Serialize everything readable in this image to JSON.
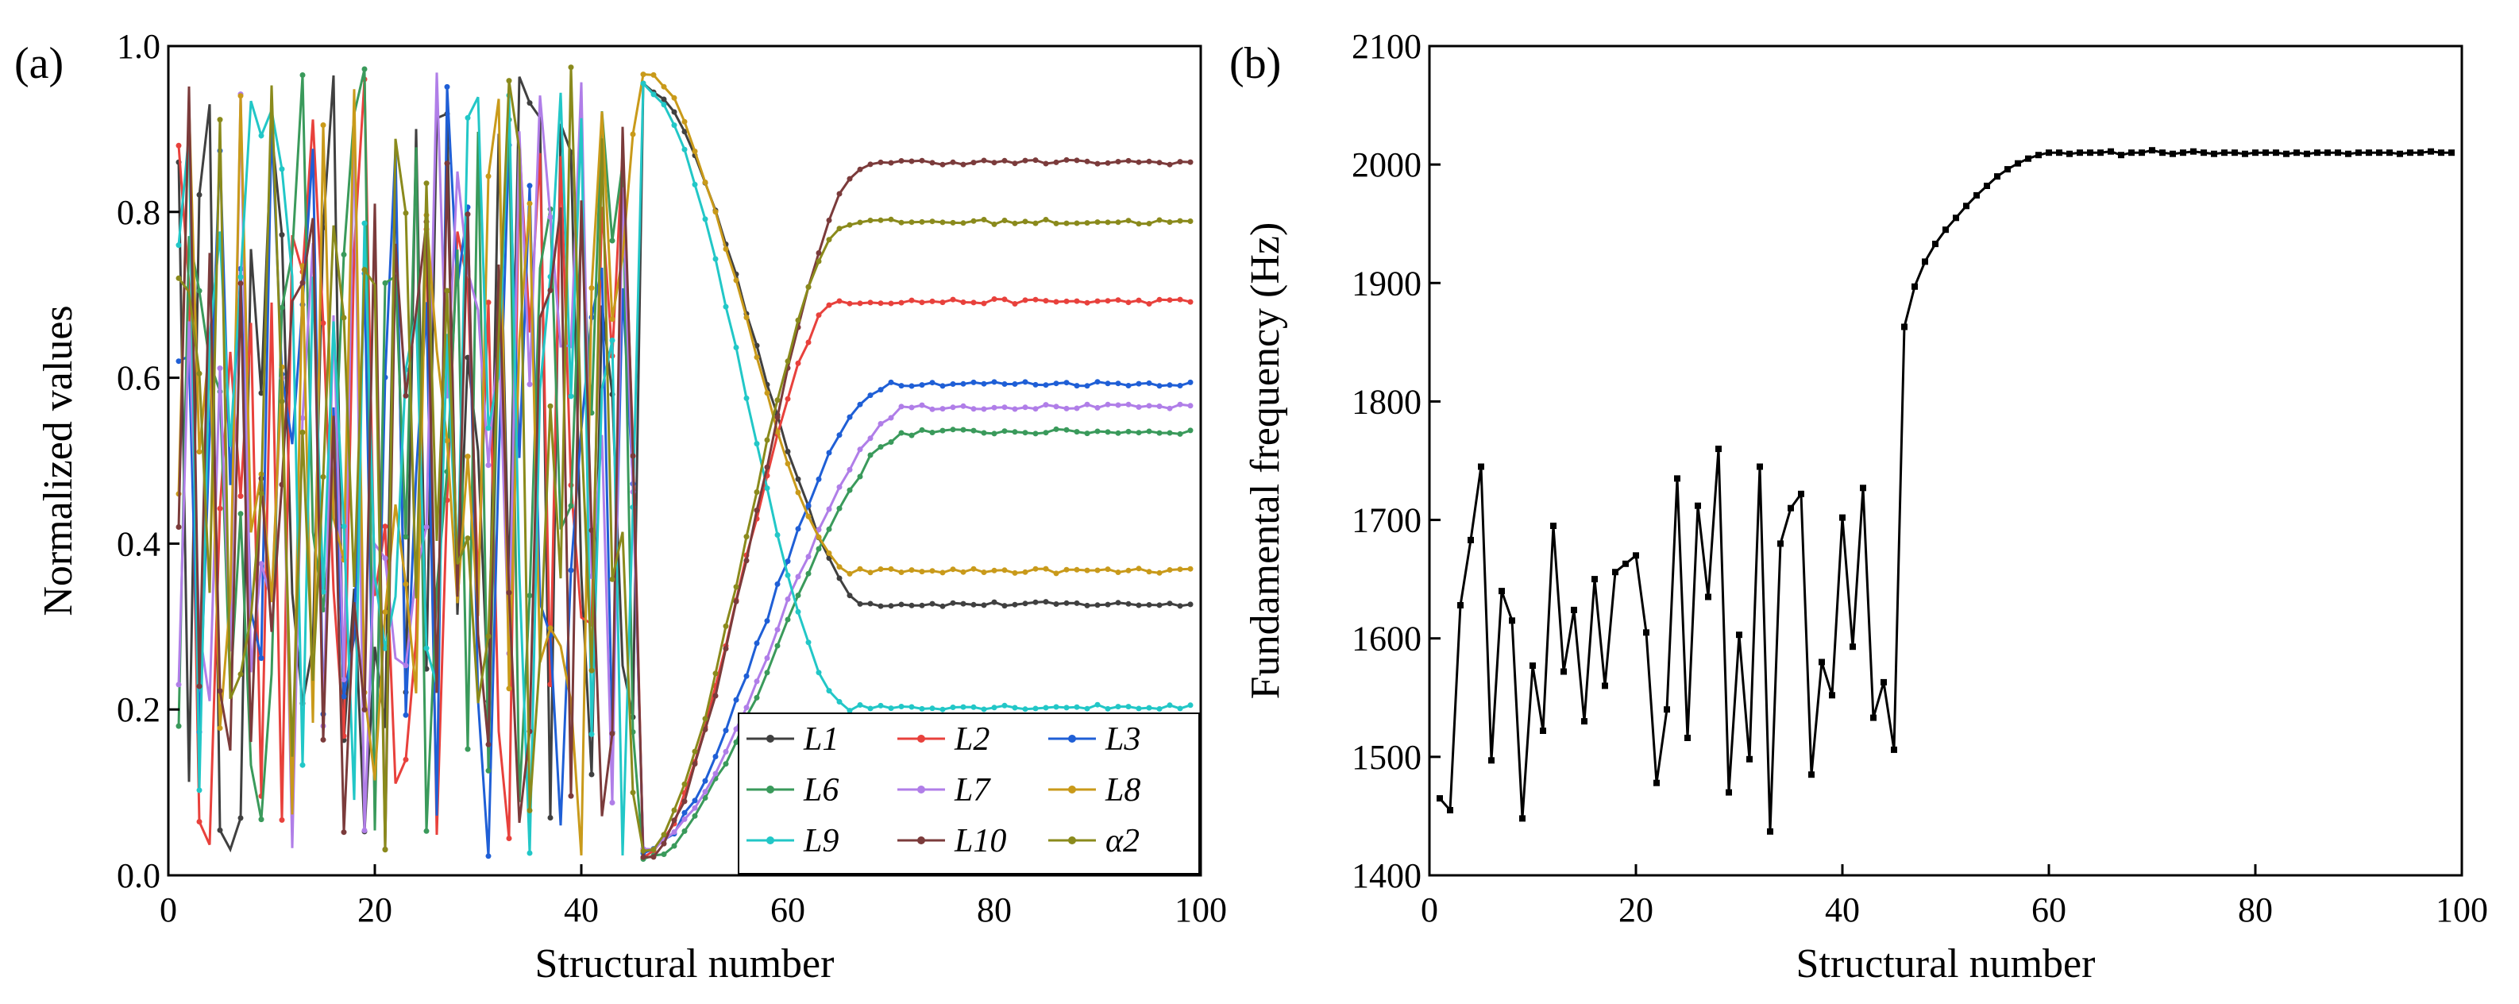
{
  "chart_data": [
    {
      "type": "line",
      "panel_label": "(a)",
      "xlabel": "Structural number",
      "ylabel": "Normalized values",
      "xlim": [
        0,
        100
      ],
      "ylim": [
        0,
        1
      ],
      "xticks": [
        "0",
        "20",
        "40",
        "60",
        "80",
        "100"
      ],
      "yticks": [
        "0.0",
        "0.2",
        "0.4",
        "0.6",
        "0.8",
        "1.0"
      ],
      "legend_position": "bottom-right",
      "grid": false,
      "series": [
        {
          "name": "L1",
          "color": "#404040",
          "start": 0.86,
          "final": 0.327,
          "transition_end": 68
        },
        {
          "name": "L2",
          "color": "#e8413c",
          "start": 0.88,
          "final": 0.692,
          "transition_end": 65
        },
        {
          "name": "L3",
          "color": "#1f5fd6",
          "start": 0.62,
          "final": 0.593,
          "transition_end": 70
        },
        {
          "name": "L6",
          "color": "#3a9a5b",
          "start": 0.18,
          "final": 0.535,
          "transition_end": 72
        },
        {
          "name": "L7",
          "color": "#b07ee8",
          "start": 0.23,
          "final": 0.565,
          "transition_end": 72
        },
        {
          "name": "L8",
          "color": "#c99a1a",
          "start": 0.46,
          "final": 0.367,
          "transition_end": 66
        },
        {
          "name": "L9",
          "color": "#22c7c7",
          "start": 0.76,
          "final": 0.203,
          "transition_end": 66
        },
        {
          "name": "L10",
          "color": "#7b3b3b",
          "start": 0.42,
          "final": 0.86,
          "transition_end": 68
        },
        {
          "name": "α2",
          "color": "#8a8a1c",
          "start": 0.72,
          "final": 0.788,
          "transition_end": 66
        }
      ]
    },
    {
      "type": "line",
      "panel_label": "(b)",
      "xlabel": "Structural number",
      "ylabel": "Fundamental frequency (Hz)",
      "xlim": [
        0,
        100
      ],
      "ylim": [
        1400,
        2100
      ],
      "xticks": [
        "0",
        "20",
        "40",
        "60",
        "80",
        "100"
      ],
      "yticks": [
        "1400",
        "1500",
        "1600",
        "1700",
        "1800",
        "1900",
        "2000",
        "2100"
      ],
      "grid": false,
      "series": [
        {
          "name": "",
          "color": "#000000",
          "x": [
            1,
            2,
            3,
            4,
            5,
            6,
            7,
            8,
            9,
            10,
            11,
            12,
            13,
            14,
            15,
            16,
            17,
            18,
            19,
            20,
            21,
            22,
            23,
            24,
            25,
            26,
            27,
            28,
            29,
            30,
            31,
            32,
            33,
            34,
            35,
            36,
            37,
            38,
            39,
            40,
            41,
            42,
            43,
            44,
            45,
            46,
            47,
            48,
            49,
            50,
            51,
            52,
            53,
            54,
            55,
            56,
            57,
            58,
            59,
            60,
            61,
            62,
            63,
            64,
            65,
            66,
            67,
            68,
            69,
            70,
            71,
            72,
            73,
            74,
            75,
            76,
            77,
            78,
            79,
            80,
            81,
            82,
            83,
            84,
            85,
            86,
            87,
            88,
            89,
            90,
            91,
            92,
            93,
            94,
            95,
            96,
            97,
            98,
            99
          ],
          "y": [
            1465,
            1455,
            1628,
            1683,
            1745,
            1497,
            1640,
            1615,
            1448,
            1577,
            1522,
            1695,
            1572,
            1624,
            1530,
            1650,
            1560,
            1656,
            1663,
            1670,
            1605,
            1478,
            1540,
            1735,
            1516,
            1712,
            1635,
            1760,
            1470,
            1603,
            1498,
            1745,
            1437,
            1680,
            1710,
            1722,
            1485,
            1580,
            1552,
            1702,
            1593,
            1727,
            1533,
            1563,
            1506,
            1863,
            1897,
            1918,
            1933,
            1945,
            1955,
            1965,
            1974,
            1982,
            1990,
            1996,
            2001,
            2005,
            2008,
            2010,
            2010,
            2009,
            2010,
            2010,
            2010,
            2011,
            2008,
            2010,
            2010,
            2012,
            2010,
            2009,
            2010,
            2011,
            2010,
            2009,
            2010,
            2010,
            2009,
            2010,
            2010,
            2010,
            2009,
            2010,
            2009,
            2010,
            2010,
            2010,
            2009,
            2010,
            2010,
            2010,
            2010,
            2009,
            2010,
            2010,
            2011,
            2010,
            2010
          ]
        }
      ]
    }
  ]
}
